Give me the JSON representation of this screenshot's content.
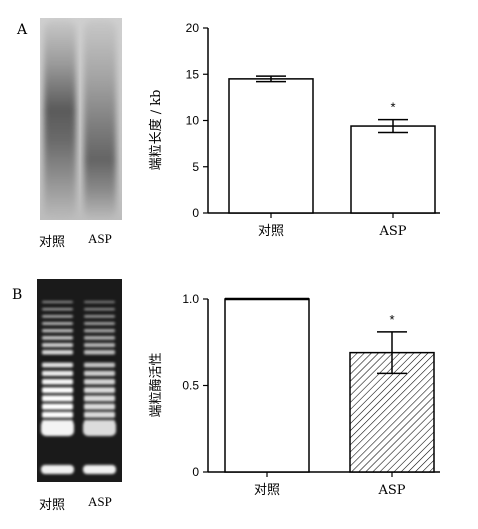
{
  "panel_a": {
    "label": "A",
    "gel_lanes": [
      "对照",
      "ASP"
    ],
    "chart_data": {
      "type": "bar",
      "categories": [
        "对照",
        "ASP"
      ],
      "values": [
        14.5,
        9.4
      ],
      "errors": [
        0.3,
        0.7
      ],
      "significance": [
        "",
        "*"
      ],
      "ylabel": "端粒长度 / kb",
      "xlabel": "",
      "ylim": [
        0,
        20
      ],
      "yticks": [
        0,
        5,
        10,
        15,
        20
      ],
      "ytick_labels": [
        "0",
        "5",
        "10",
        "15",
        "20"
      ],
      "fills": [
        "#ffffff",
        "#ffffff"
      ]
    }
  },
  "panel_b": {
    "label": "B",
    "gel_lanes": [
      "对照",
      "ASP"
    ],
    "chart_data": {
      "type": "bar",
      "categories": [
        "对照",
        "ASP"
      ],
      "values": [
        1.0,
        0.69
      ],
      "errors": [
        0.0,
        0.12
      ],
      "significance": [
        "",
        "*"
      ],
      "ylabel": "端粒酶活性",
      "xlabel": "",
      "ylim": [
        0,
        1.0
      ],
      "yticks": [
        0,
        0.5,
        1.0
      ],
      "ytick_labels": [
        "0",
        "0.5",
        "1.0"
      ],
      "fills": [
        "#ffffff",
        "hatch"
      ]
    }
  }
}
